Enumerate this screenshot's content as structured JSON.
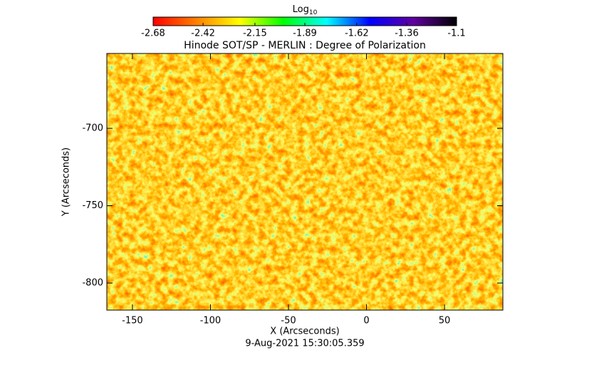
{
  "chart_data": {
    "type": "heatmap",
    "title": "Hinode SOT/SP - MERLIN : Degree of Polarization",
    "x_label": "X (Arcseconds)",
    "y_label": "Y (Arcseconds)",
    "footer": "9-Aug-2021 15:30:05.359",
    "colorbar_label": "Log",
    "colorbar_label_sub": "10",
    "colormap": [
      "#ff0000",
      "#ff8000",
      "#ffff00",
      "#00ff00",
      "#00ffff",
      "#0000ff",
      "#6000a0",
      "#000000"
    ],
    "clim": [
      -2.68,
      -1.1
    ],
    "cticks": [
      -2.68,
      -2.42,
      -2.15,
      -1.89,
      -1.62,
      -1.36,
      -1.1
    ],
    "xlim": [
      -166.4,
      87.4
    ],
    "xticks": [
      -150,
      -100,
      -50,
      0,
      50
    ],
    "ylim": [
      -817.5,
      -651.6
    ],
    "yticks": [
      -700,
      -750,
      -800
    ]
  }
}
